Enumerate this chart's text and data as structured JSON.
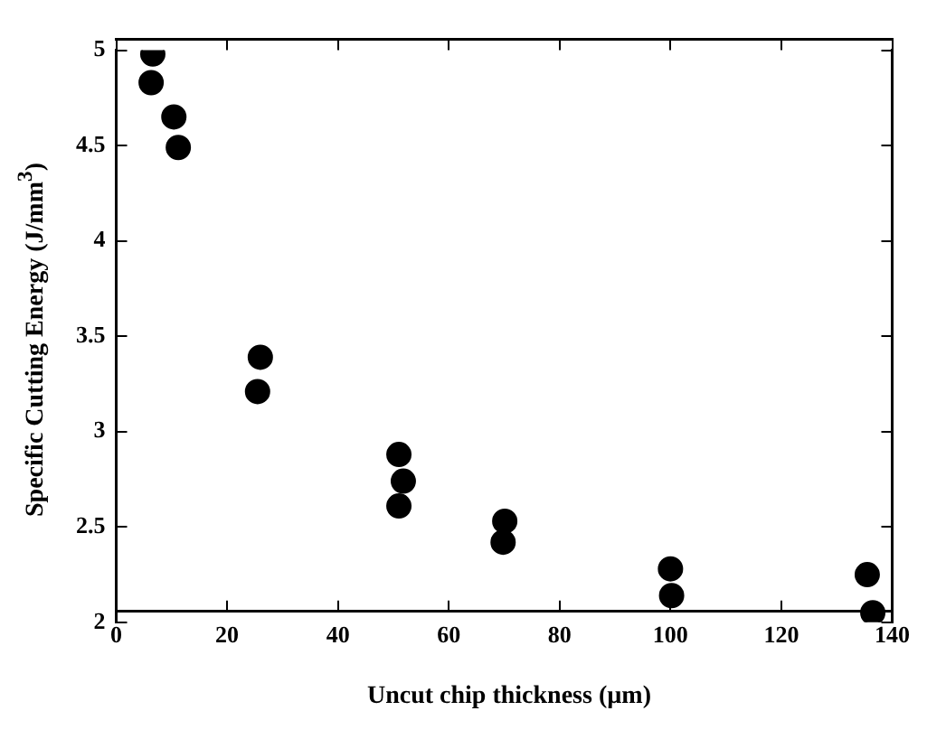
{
  "chart_data": {
    "type": "scatter",
    "xlabel": "Uncut chip thickness (µm)",
    "ylabel": "Specific Cutting Energy  (J/mm$^{3}$)",
    "x": [
      6.6,
      6.3,
      10.4,
      11.2,
      26,
      25.5,
      51,
      51.8,
      51,
      70.1,
      69.8,
      100,
      100.2,
      135.5,
      136.5
    ],
    "values": [
      4.98,
      4.83,
      4.65,
      4.49,
      3.39,
      3.21,
      2.88,
      2.74,
      2.61,
      2.53,
      2.42,
      2.28,
      2.14,
      2.25,
      2.05
    ],
    "color": "#000000",
    "marker": "circle",
    "xlim": [
      0,
      140
    ],
    "xticks": [
      0,
      20,
      40,
      60,
      80,
      100,
      120,
      140
    ],
    "ylim": [
      2,
      5
    ],
    "yticks": [
      2,
      2.5,
      3,
      3.5,
      4,
      4.5,
      5
    ],
    "grid": false,
    "legend": false
  }
}
